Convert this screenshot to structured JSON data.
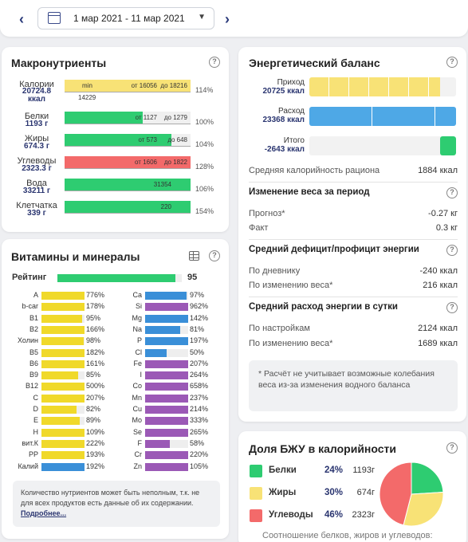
{
  "date_range": {
    "label": "1 мар 2021 - 11 мар 2021"
  },
  "macro": {
    "title": "Макронутриенты",
    "help": "?",
    "rows": [
      {
        "name": "Калории",
        "value": "20724.8 ккал",
        "fill": 1.0,
        "color": "#f8e276",
        "left_label": "min",
        "labels": [
          "от 16056",
          "до 18216"
        ],
        "extra": "14229",
        "pct": "114%"
      },
      {
        "name": "Белки",
        "value": "1193 г",
        "fill": 0.62,
        "color": "#2ecc71",
        "labels": [
          "от 1127",
          "до 1279"
        ],
        "pct": "100%"
      },
      {
        "name": "Жиры",
        "value": "674.3 г",
        "fill": 0.85,
        "color": "#2ecc71",
        "labels": [
          "от 573",
          "до 648"
        ],
        "pct": "104%"
      },
      {
        "name": "Углеводы",
        "value": "2323.3 г",
        "fill": 1.0,
        "color": "#f36a6a",
        "labels": [
          "от 1606",
          "до 1822"
        ],
        "pct": "128%"
      },
      {
        "name": "Вода",
        "value": "33211 г",
        "fill": 1.0,
        "color": "#2ecc71",
        "labels": [
          "31354"
        ],
        "pct": "106%"
      },
      {
        "name": "Клетчатка",
        "value": "339 г",
        "fill": 1.0,
        "color": "#2ecc71",
        "labels": [
          "220"
        ],
        "pct": "154%"
      }
    ]
  },
  "vitamins": {
    "title": "Витамины и минералы",
    "rating_label": "Рейтинг",
    "rating_value": "95",
    "rating_fill": 0.95,
    "left": [
      {
        "name": "A",
        "pct": "776%",
        "fill": 1.0,
        "color": "#f0d92a"
      },
      {
        "name": "b-car",
        "pct": "178%",
        "fill": 1.0,
        "color": "#f0d92a"
      },
      {
        "name": "B1",
        "pct": "95%",
        "fill": 0.95,
        "color": "#f0d92a"
      },
      {
        "name": "B2",
        "pct": "166%",
        "fill": 1.0,
        "color": "#f0d92a"
      },
      {
        "name": "Холин",
        "pct": "98%",
        "fill": 0.98,
        "color": "#f0d92a"
      },
      {
        "name": "B5",
        "pct": "182%",
        "fill": 1.0,
        "color": "#f0d92a"
      },
      {
        "name": "B6",
        "pct": "161%",
        "fill": 1.0,
        "color": "#f0d92a"
      },
      {
        "name": "B9",
        "pct": "85%",
        "fill": 0.85,
        "color": "#f0d92a"
      },
      {
        "name": "B12",
        "pct": "500%",
        "fill": 1.0,
        "color": "#f0d92a"
      },
      {
        "name": "C",
        "pct": "207%",
        "fill": 1.0,
        "color": "#f0d92a"
      },
      {
        "name": "D",
        "pct": "82%",
        "fill": 0.82,
        "color": "#f0d92a"
      },
      {
        "name": "E",
        "pct": "89%",
        "fill": 0.89,
        "color": "#f0d92a"
      },
      {
        "name": "H",
        "pct": "109%",
        "fill": 1.0,
        "color": "#f0d92a"
      },
      {
        "name": "вит.К",
        "pct": "222%",
        "fill": 1.0,
        "color": "#f0d92a"
      },
      {
        "name": "PP",
        "pct": "193%",
        "fill": 1.0,
        "color": "#f0d92a"
      },
      {
        "name": "Калий",
        "pct": "192%",
        "fill": 1.0,
        "color": "#3a8fd8"
      }
    ],
    "right": [
      {
        "name": "Ca",
        "pct": "97%",
        "fill": 0.97,
        "color": "#3a8fd8"
      },
      {
        "name": "Si",
        "pct": "962%",
        "fill": 1.0,
        "color": "#9b59b6"
      },
      {
        "name": "Mg",
        "pct": "142%",
        "fill": 1.0,
        "color": "#3a8fd8"
      },
      {
        "name": "Na",
        "pct": "81%",
        "fill": 0.81,
        "color": "#3a8fd8"
      },
      {
        "name": "P",
        "pct": "197%",
        "fill": 1.0,
        "color": "#3a8fd8"
      },
      {
        "name": "Cl",
        "pct": "50%",
        "fill": 0.5,
        "color": "#3a8fd8"
      },
      {
        "name": "Fe",
        "pct": "207%",
        "fill": 1.0,
        "color": "#9b59b6"
      },
      {
        "name": "I",
        "pct": "264%",
        "fill": 1.0,
        "color": "#9b59b6"
      },
      {
        "name": "Co",
        "pct": "658%",
        "fill": 1.0,
        "color": "#9b59b6"
      },
      {
        "name": "Mn",
        "pct": "237%",
        "fill": 1.0,
        "color": "#9b59b6"
      },
      {
        "name": "Cu",
        "pct": "214%",
        "fill": 1.0,
        "color": "#9b59b6"
      },
      {
        "name": "Mo",
        "pct": "333%",
        "fill": 1.0,
        "color": "#9b59b6"
      },
      {
        "name": "Se",
        "pct": "265%",
        "fill": 1.0,
        "color": "#9b59b6"
      },
      {
        "name": "F",
        "pct": "58%",
        "fill": 0.58,
        "color": "#9b59b6"
      },
      {
        "name": "Cr",
        "pct": "220%",
        "fill": 1.0,
        "color": "#9b59b6"
      },
      {
        "name": "Zn",
        "pct": "105%",
        "fill": 1.0,
        "color": "#9b59b6"
      }
    ],
    "note": "Количество нутриентов может быть неполным, т.к. не для всех продуктов есть данные об их содержании.",
    "note_link": "Подробнее..."
  },
  "energy": {
    "title": "Энергетический баланс",
    "intake_label": "Приход",
    "intake_value": "20725 ккал",
    "intake_fill": 0.89,
    "expense_label": "Расход",
    "expense_value": "23368 ккал",
    "expense_fill": 1.0,
    "total_label": "Итого",
    "total_value": "-2643 ккал",
    "avg_cal_label": "Средняя калорийность рациона",
    "avg_cal_value": "1884 ккал",
    "weight_title": "Изменение веса за период",
    "forecast_label": "Прогноз*",
    "forecast_value": "-0.27 кг",
    "fact_label": "Факт",
    "fact_value": "0.3 кг",
    "deficit_title": "Средний дефицит/профицит энергии",
    "diary_label": "По дневнику",
    "diary_value": "-240 ккал",
    "byweight_label": "По изменению веса*",
    "byweight_value": "216 ккал",
    "expense_title": "Средний расход энергии в сутки",
    "settings_label": "По настройкам",
    "settings_value": "2124 ккал",
    "byweight2_label": "По изменению веса*",
    "byweight2_value": "1689 ккал",
    "note": "* Расчёт не учитывает возможные колебания веса из-за изменения водного баланса"
  },
  "bju": {
    "title": "Доля БЖУ в калорийности",
    "items": [
      {
        "name": "Белки",
        "pct": "24%",
        "grams": "1193г",
        "color": "#2ecc71",
        "share": 24
      },
      {
        "name": "Жиры",
        "pct": "30%",
        "grams": "674г",
        "color": "#f8e276",
        "share": 30
      },
      {
        "name": "Углеводы",
        "pct": "46%",
        "grams": "2323г",
        "color": "#f36a6a",
        "share": 46
      }
    ],
    "footer": "Соотношение белков, жиров и углеводов:"
  }
}
